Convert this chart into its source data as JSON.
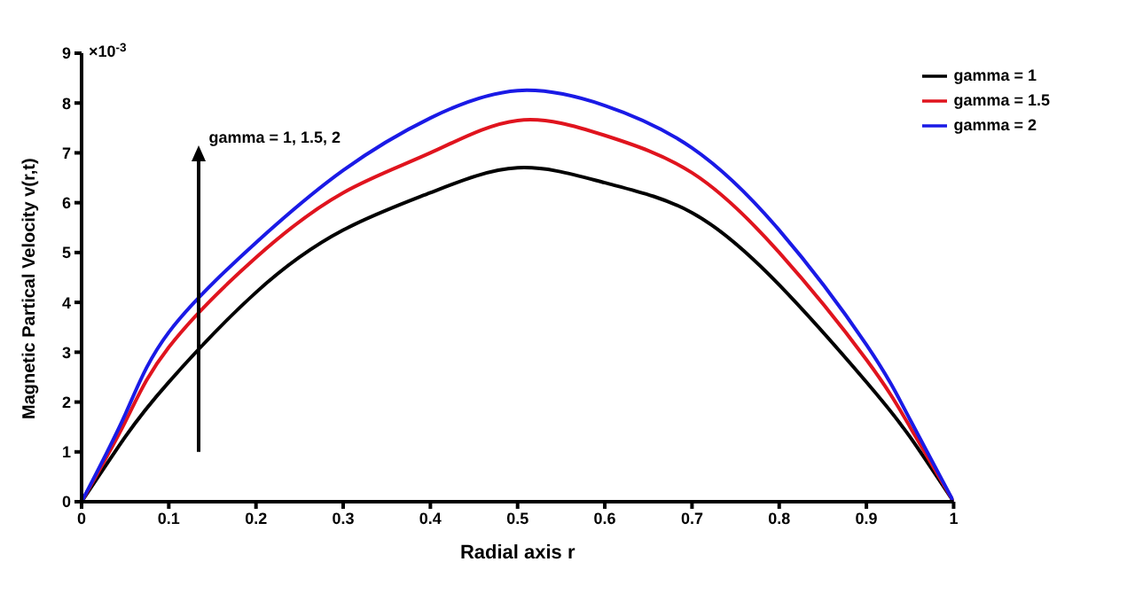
{
  "chart_data": {
    "type": "line",
    "xlabel": "Radial axis r",
    "ylabel": "Magnetic Partical Velocity v(r,t)",
    "annotations": [
      "×10$^{-3}$",
      "gamma = 1, 1.5, 2"
    ],
    "x": [
      0,
      0.05,
      0.1,
      0.2,
      0.3,
      0.4,
      0.5,
      0.6,
      0.7,
      0.8,
      0.9,
      0.95,
      1
    ],
    "series": [
      {
        "name": "gamma = 1",
        "color": "#000000",
        "values": [
          0,
          1.3,
          2.4,
          4.2,
          5.45,
          6.2,
          6.7,
          6.4,
          5.8,
          4.35,
          2.4,
          1.3,
          0
        ]
      },
      {
        "name": "gamma = 1.5",
        "color": "#e0141e",
        "values": [
          0,
          1.6,
          3.1,
          4.9,
          6.2,
          7.0,
          7.65,
          7.35,
          6.6,
          5.0,
          2.85,
          1.5,
          0
        ]
      },
      {
        "name": "gamma = 2",
        "color": "#1a1ae6",
        "values": [
          0,
          1.75,
          3.4,
          5.2,
          6.65,
          7.7,
          8.25,
          7.95,
          7.1,
          5.45,
          3.15,
          1.65,
          0
        ]
      }
    ],
    "xlim": [
      0,
      1
    ],
    "xticks": [
      0,
      0.1,
      0.2,
      0.3,
      0.4,
      0.5,
      0.6,
      0.7,
      0.8,
      0.9,
      1
    ],
    "ylim": [
      0,
      9
    ],
    "yticks": [
      0,
      1,
      2,
      3,
      4,
      5,
      6,
      7,
      8,
      9
    ],
    "grid": false,
    "legend": "top right",
    "marker": "none",
    "line_style": "solid"
  }
}
